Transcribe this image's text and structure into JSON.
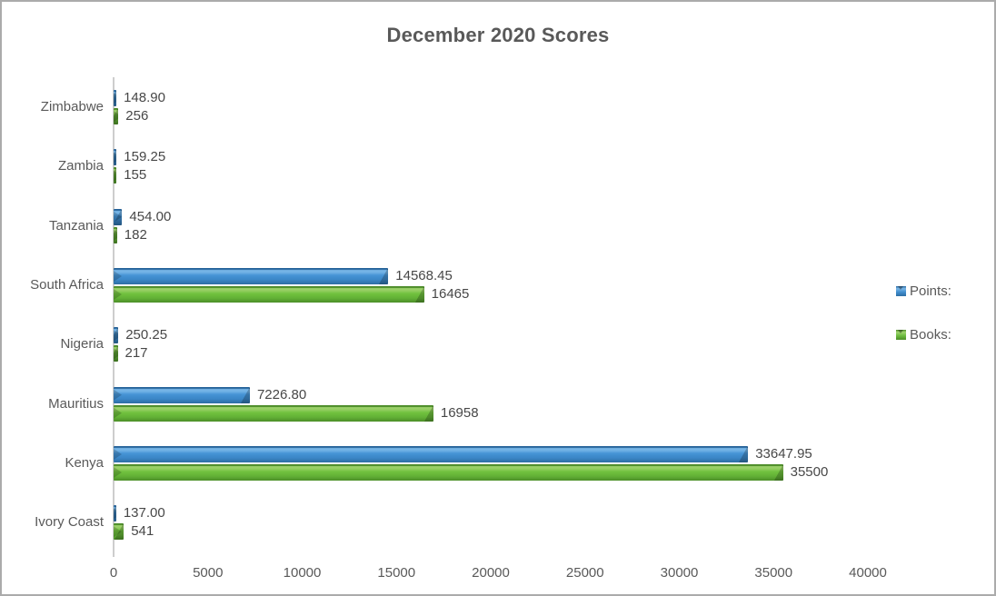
{
  "chart_data": {
    "type": "bar",
    "orientation": "horizontal",
    "title": "December 2020 Scores",
    "categories": [
      "Zimbabwe",
      "Zambia",
      "Tanzania",
      "South Africa",
      "Nigeria",
      "Mauritius",
      "Kenya",
      "Ivory Coast"
    ],
    "series": [
      {
        "name": "Points:",
        "color": "#3f8dce",
        "values": [
          148.9,
          159.25,
          454.0,
          14568.45,
          250.25,
          7226.8,
          33647.95,
          137.0
        ],
        "labels": [
          "148.90",
          "159.25",
          "454.00",
          "14568.45",
          "250.25",
          "7226.80",
          "33647.95",
          "137.00"
        ]
      },
      {
        "name": "Books:",
        "color": "#6cbb3e",
        "values": [
          256,
          155,
          182,
          16465,
          217,
          16958,
          35500,
          541
        ],
        "labels": [
          "256",
          "155",
          "182",
          "16465",
          "217",
          "16958",
          "35500",
          "541"
        ]
      }
    ],
    "x_axis": {
      "ticks": [
        0,
        5000,
        10000,
        15000,
        20000,
        25000,
        30000,
        35000,
        40000
      ],
      "tick_labels": [
        "0",
        "5000",
        "10000",
        "15000",
        "20000",
        "25000",
        "30000",
        "35000",
        "40000"
      ],
      "min": 0,
      "max": 40000
    },
    "legend_position": "right",
    "grid": false,
    "bar_style": "3d-bevel"
  },
  "colors": {
    "points_bar": "#3f8dce",
    "books_bar": "#6cbb3e",
    "title_text": "#595959",
    "axis_text": "#595959",
    "data_label_text": "#474747",
    "axis_line": "#cdcdcd",
    "frame_border": "#ababab",
    "background": "#ffffff"
  }
}
